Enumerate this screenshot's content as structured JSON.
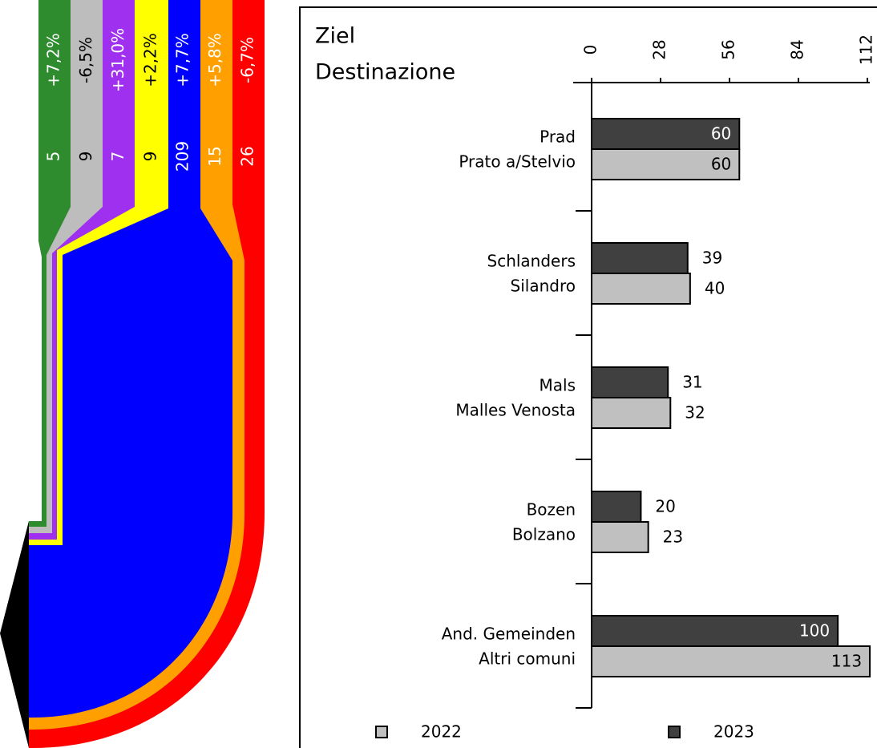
{
  "flow": {
    "bands": [
      {
        "value": 5,
        "change": "+7,2%",
        "color": "#2e8b2e",
        "text_color": "#ffffff"
      },
      {
        "value": 9,
        "change": "-6,5%",
        "color": "#bdbdbd",
        "text_color": "#000000"
      },
      {
        "value": 7,
        "change": "+31,0%",
        "color": "#a030f0",
        "text_color": "#ffffff"
      },
      {
        "value": 9,
        "change": "+2,2%",
        "color": "#ffff00",
        "text_color": "#000000"
      },
      {
        "value": 209,
        "change": "+7,7%",
        "color": "#0000ff",
        "text_color": "#ffffff"
      },
      {
        "value": 15,
        "change": "+5,8%",
        "color": "#ffa000",
        "text_color": "#ffffff"
      },
      {
        "value": 26,
        "change": "-6,7%",
        "color": "#ff0000",
        "text_color": "#ffffff"
      }
    ]
  },
  "chart_data": {
    "type": "barh",
    "title": "Ziel",
    "subtitle": "Destinazione",
    "categories": [
      [
        "Prad",
        "Prato a/Stelvio"
      ],
      [
        "Schlanders",
        "Silandro"
      ],
      [
        "Mals",
        "Malles Venosta"
      ],
      [
        "Bozen",
        "Bolzano"
      ],
      [
        "And. Gemeinden",
        "Altri comuni"
      ]
    ],
    "series": [
      {
        "name": "2022",
        "color": "#c0c0c0",
        "label_color": "#000000",
        "values": [
          60,
          40,
          32,
          23,
          113
        ]
      },
      {
        "name": "2023",
        "color": "#404040",
        "label_color": "#ffffff",
        "values": [
          60,
          39,
          31,
          20,
          100
        ]
      }
    ],
    "xlim": [
      0,
      112
    ],
    "xticks": [
      0,
      28,
      56,
      84,
      112
    ]
  }
}
